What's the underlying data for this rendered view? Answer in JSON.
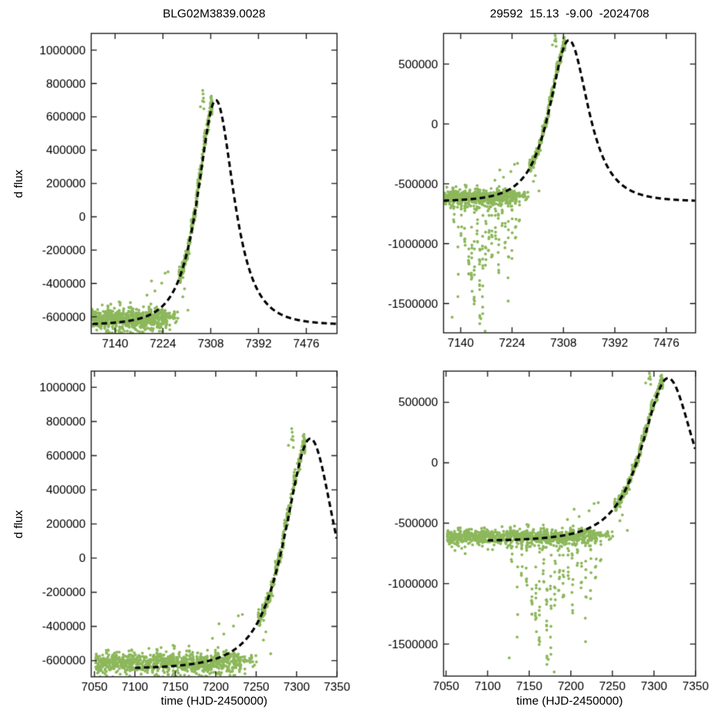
{
  "figure": {
    "background": "#ffffff",
    "kind": "2x2 grid of microlensing light-curve panels: green photometry scatter with black dashed model fit"
  },
  "style": {
    "point_color": "#8db85c",
    "point_radius": 2.1,
    "model_color": "#000000",
    "model_width": 3.4,
    "model_dash": [
      8,
      5
    ],
    "frame_color": "#2a2a2a",
    "text_color": "#000000",
    "tick_len": 8,
    "font": "17px \"Liberation Sans\", sans-serif"
  },
  "chart_data": [
    {
      "type": "scatter",
      "panel": "top-left",
      "title": "BLG02M3839.0028",
      "xlabel": "",
      "ylabel": "d flux",
      "xlim": [
        7098,
        7530
      ],
      "ylim": [
        -700000,
        1100000
      ],
      "xticks": [
        7140,
        7224,
        7308,
        7392,
        7476
      ],
      "yticks": [
        -600000,
        -400000,
        -200000,
        0,
        200000,
        400000,
        600000,
        800000,
        1000000
      ],
      "series": [
        "photometry-points",
        "microlensing-model"
      ]
    },
    {
      "type": "scatter",
      "panel": "top-right",
      "title": "29592  15.13  -9.00  -2024708",
      "xlabel": "",
      "ylabel": "",
      "xlim": [
        7112,
        7524
      ],
      "ylim": [
        -1745000,
        756000
      ],
      "xticks": [
        7140,
        7224,
        7308,
        7392,
        7476
      ],
      "yticks": [
        -1500000,
        -1000000,
        -500000,
        0,
        500000
      ],
      "series": [
        "photometry-points",
        "microlensing-model"
      ]
    },
    {
      "type": "scatter",
      "panel": "bottom-left",
      "title": "",
      "xlabel": "time (HJD-2450000)",
      "ylabel": "d flux",
      "xlim": [
        7046,
        7350
      ],
      "ylim": [
        -695000,
        1095000
      ],
      "xticks": [
        7050,
        7100,
        7150,
        7200,
        7250,
        7300,
        7350
      ],
      "yticks": [
        -600000,
        -400000,
        -200000,
        0,
        200000,
        400000,
        600000,
        800000,
        1000000
      ],
      "series": [
        "photometry-points",
        "microlensing-model"
      ]
    },
    {
      "type": "scatter",
      "panel": "bottom-right",
      "title": "",
      "xlabel": "time (HJD-2450000)",
      "ylabel": "",
      "xlim": [
        7047,
        7350
      ],
      "ylim": [
        -1765000,
        758000
      ],
      "xticks": [
        7050,
        7100,
        7150,
        7200,
        7250,
        7300,
        7350
      ],
      "yticks": [
        -1500000,
        -1000000,
        -500000,
        0,
        500000
      ],
      "series": [
        "photometry-points",
        "microlensing-model"
      ]
    }
  ],
  "model": {
    "name": "microlensing-model",
    "shape": "paczynski",
    "t0": 7317,
    "tE": 40,
    "u0": 1.0,
    "fs": 3951000,
    "baseline": -650000,
    "peak_flux": 700000,
    "t_start": 7100,
    "line_style": "dashed",
    "color": "#000000"
  },
  "scatter_spec": {
    "name": "photometry-points",
    "seed": 42,
    "baseline_band": {
      "t_start": 7052,
      "t_end": 7232,
      "step": 1.05,
      "n_min": 2,
      "n_max": 11,
      "mean": -612000,
      "sigma": 26000,
      "night_jitter": 14000,
      "low_tail": 90000
    },
    "bridge": {
      "t_start": 7233,
      "t_end": 7252,
      "step": 2.1,
      "n_min": 1,
      "n_max": 4,
      "mean": -602000,
      "sigma": 24000
    },
    "rising_arm": {
      "t_start": 7253,
      "t_end": 7311,
      "step": 1.25,
      "n_min": 3,
      "n_max": 13,
      "sigma": 21000,
      "night_jitter": 17000,
      "bias": 28000,
      "bias_from": 7284
    },
    "streak_top": -660000,
    "streaks": [
      {
        "t": 7129,
        "depth": -880000,
        "n": 5
      },
      {
        "t": 7136,
        "depth": -1460000,
        "n": 4
      },
      {
        "t": 7141,
        "depth": -950000,
        "n": 6
      },
      {
        "t": 7147,
        "depth": -1030000,
        "n": 8
      },
      {
        "t": 7153,
        "depth": -1260000,
        "n": 8
      },
      {
        "t": 7158,
        "depth": -1420000,
        "n": 10
      },
      {
        "t": 7162,
        "depth": -1540000,
        "n": 12
      },
      {
        "t": 7167,
        "depth": -1000000,
        "n": 7
      },
      {
        "t": 7171,
        "depth": -1690000,
        "n": 13
      },
      {
        "t": 7176,
        "depth": -1560000,
        "n": 11
      },
      {
        "t": 7181,
        "depth": -1210000,
        "n": 8
      },
      {
        "t": 7186,
        "depth": -1110000,
        "n": 8
      },
      {
        "t": 7191,
        "depth": -1310000,
        "n": 9
      },
      {
        "t": 7197,
        "depth": -990000,
        "n": 6
      },
      {
        "t": 7202,
        "depth": -1360000,
        "n": 9
      },
      {
        "t": 7208,
        "depth": -880000,
        "n": 5
      },
      {
        "t": 7213,
        "depth": -1060000,
        "n": 6
      },
      {
        "t": 7218,
        "depth": -1500000,
        "n": 8
      },
      {
        "t": 7224,
        "depth": -1180000,
        "n": 7
      },
      {
        "t": 7230,
        "depth": -1030000,
        "n": 5
      },
      {
        "t": 7236,
        "depth": -900000,
        "n": 3
      }
    ],
    "extras": [
      [
        7126,
        -1615000
      ],
      [
        7173,
        -1627000
      ],
      [
        7180,
        -1731000
      ],
      [
        7196,
        -470000
      ],
      [
        7204,
        -385000
      ],
      [
        7210,
        -445000
      ],
      [
        7222,
        -398000
      ],
      [
        7228,
        -338000
      ],
      [
        7233,
        -330000
      ],
      [
        7259,
        -480000
      ],
      [
        7262,
        -432000
      ],
      [
        7268,
        -560000
      ],
      [
        7290,
        660000
      ],
      [
        7293.7,
        695000
      ],
      [
        7294,
        758000
      ],
      [
        7294.6,
        737000
      ],
      [
        7295.3,
        712000
      ],
      [
        7295.8,
        690000
      ],
      [
        7296,
        648000
      ]
    ]
  }
}
